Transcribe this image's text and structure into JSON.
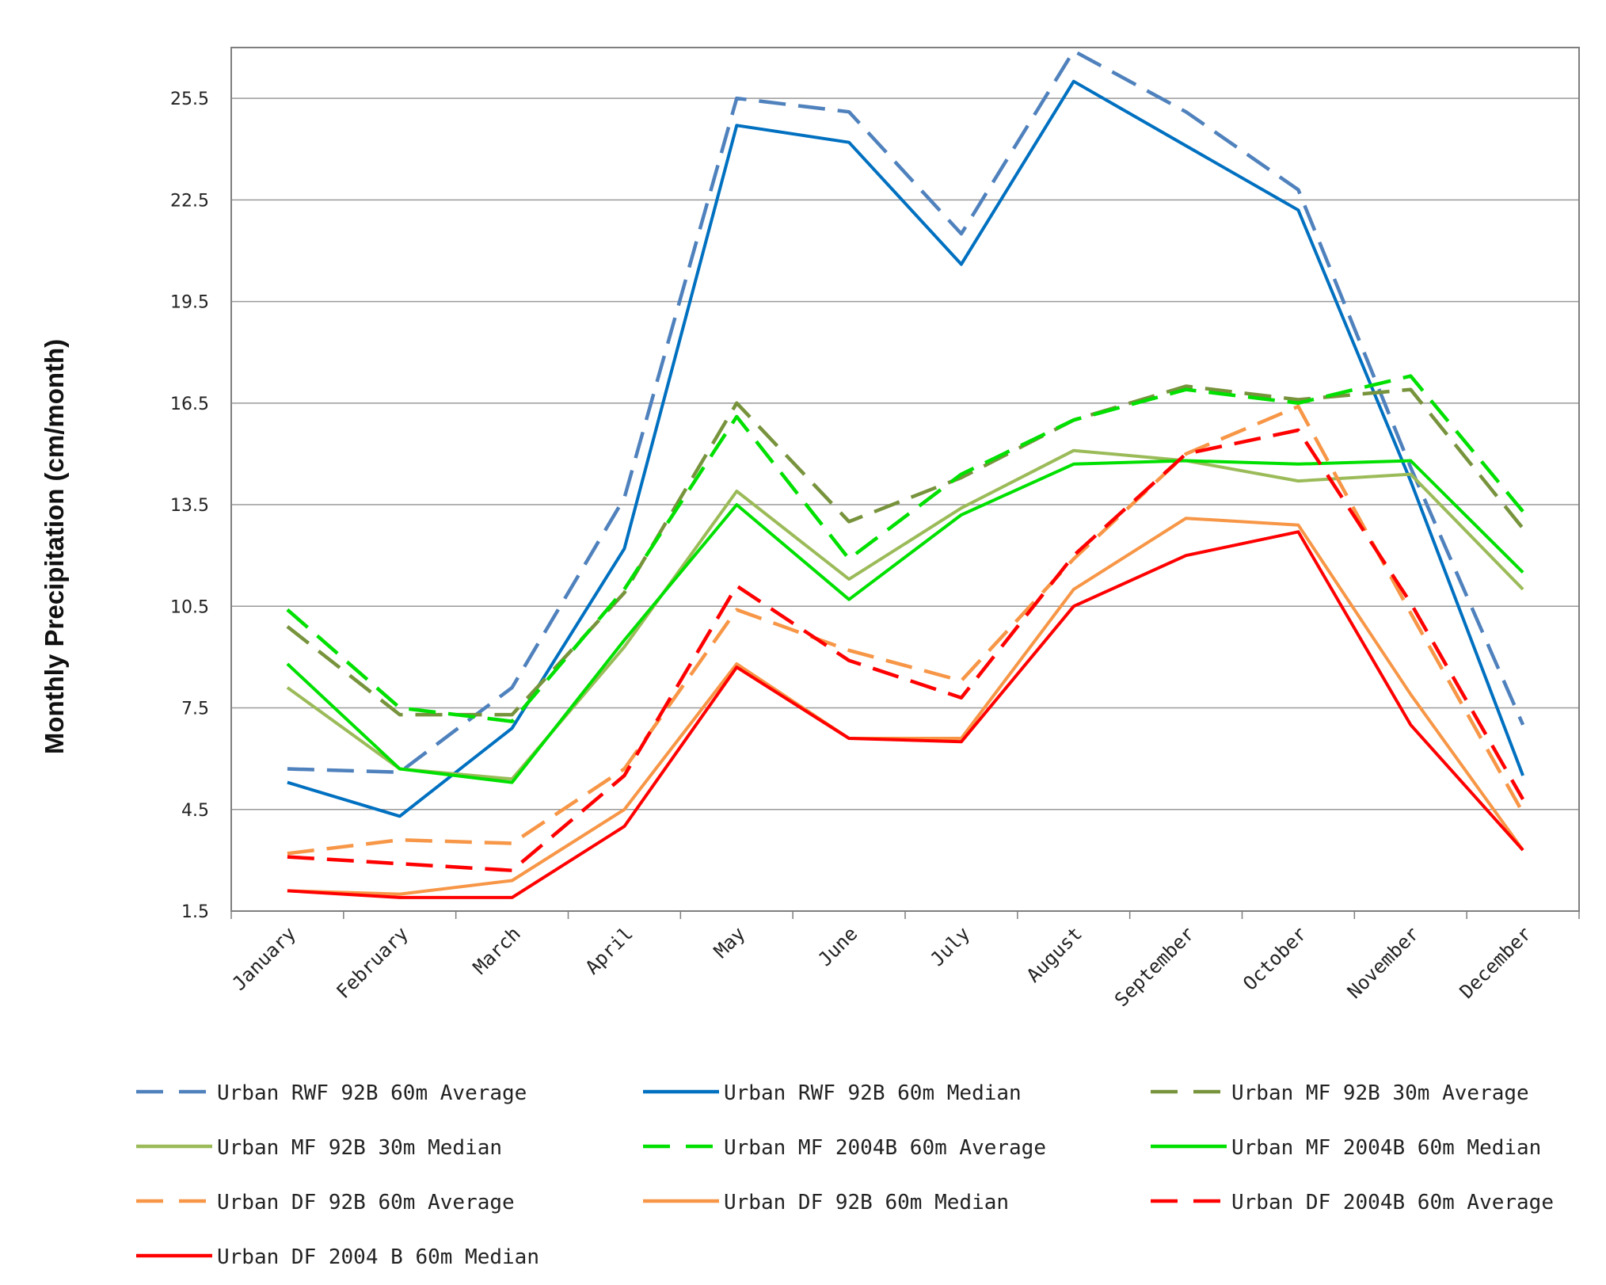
{
  "chart_data": {
    "type": "line",
    "title": "",
    "xlabel": "",
    "ylabel": "Monthly Precipitation (cm/month)",
    "ylim": [
      1.5,
      27.0
    ],
    "yticks": [
      "1.5",
      "4.5",
      "7.5",
      "10.5",
      "13.5",
      "16.5",
      "19.5",
      "22.5",
      "25.5"
    ],
    "ytick_values": [
      1.5,
      4.5,
      7.5,
      10.5,
      13.5,
      16.5,
      19.5,
      22.5,
      25.5
    ],
    "grid": true,
    "legend_position": "bottom",
    "categories": [
      "January",
      "February",
      "March",
      "April",
      "May",
      "June",
      "July",
      "August",
      "September",
      "October",
      "November",
      "December"
    ],
    "series": [
      {
        "name": "Urban RWF 92B 60m Average",
        "color": "#4f81bd",
        "dash": true,
        "values": [
          5.7,
          5.6,
          8.1,
          13.7,
          25.5,
          25.1,
          21.5,
          26.9,
          25.1,
          22.8,
          14.6,
          7.0
        ]
      },
      {
        "name": "Urban RWF 92B 60m Median",
        "color": "#0070c0",
        "dash": false,
        "values": [
          5.3,
          4.3,
          6.9,
          12.2,
          24.7,
          24.2,
          20.6,
          26.0,
          24.1,
          22.2,
          14.2,
          5.5
        ]
      },
      {
        "name": "Urban MF 92B 30m Average",
        "color": "#77933c",
        "dash": true,
        "values": [
          9.9,
          7.3,
          7.3,
          10.9,
          16.5,
          13.0,
          14.3,
          16.0,
          17.0,
          16.6,
          16.9,
          12.8
        ]
      },
      {
        "name": "Urban MF 92B 30m Median",
        "color": "#9bbb59",
        "dash": false,
        "values": [
          8.1,
          5.7,
          5.4,
          9.3,
          13.9,
          11.3,
          13.4,
          15.1,
          14.8,
          14.2,
          14.4,
          11.0
        ]
      },
      {
        "name": "Urban MF 2004B 60m Average",
        "color": "#00e000",
        "dash": true,
        "values": [
          10.4,
          7.5,
          7.1,
          11.0,
          16.1,
          11.9,
          14.4,
          16.0,
          16.9,
          16.5,
          17.3,
          13.3
        ]
      },
      {
        "name": "Urban MF 2004B 60m Median",
        "color": "#00e000",
        "dash": false,
        "values": [
          8.8,
          5.7,
          5.3,
          9.5,
          13.5,
          10.7,
          13.2,
          14.7,
          14.8,
          14.7,
          14.8,
          11.5
        ]
      },
      {
        "name": "Urban DF 92B 60m Average",
        "color": "#f79646",
        "dash": true,
        "values": [
          3.2,
          3.6,
          3.5,
          5.7,
          10.4,
          9.2,
          8.3,
          11.9,
          15.0,
          16.4,
          10.3,
          4.4
        ]
      },
      {
        "name": "Urban DF 92B 60m Median",
        "color": "#f79646",
        "dash": false,
        "values": [
          2.1,
          2.0,
          2.4,
          4.5,
          8.8,
          6.6,
          6.6,
          11.0,
          13.1,
          12.9,
          7.9,
          3.3
        ]
      },
      {
        "name": "Urban DF 2004B 60m Average",
        "color": "#ff0000",
        "dash": true,
        "values": [
          3.1,
          2.9,
          2.7,
          5.5,
          11.1,
          8.9,
          7.8,
          12.0,
          15.0,
          15.7,
          10.6,
          4.8
        ]
      },
      {
        "name": "Urban DF 2004 B 60m Median",
        "color": "#ff0000",
        "dash": false,
        "values": [
          2.1,
          1.9,
          1.9,
          4.0,
          8.7,
          6.6,
          6.5,
          10.5,
          12.0,
          12.7,
          7.0,
          3.3
        ]
      }
    ]
  }
}
